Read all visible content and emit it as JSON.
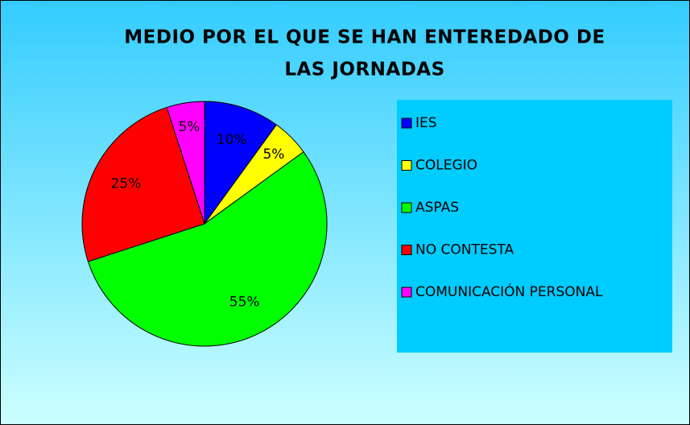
{
  "chart_data": {
    "type": "pie",
    "title": [
      "MEDIO POR EL QUE SE HAN ENTEREDADO DE",
      "LAS JORNADAS"
    ],
    "categories": [
      "IES",
      "COLEGIO",
      "ASPAS",
      "NO CONTESTA",
      "COMUNICACIÓN PERSONAL"
    ],
    "values": [
      10,
      5,
      55,
      25,
      5
    ],
    "value_labels": [
      "10%",
      "5%",
      "55%",
      "25%",
      "5%"
    ],
    "colors": [
      "#0000ff",
      "#ffff00",
      "#00ff00",
      "#ff0000",
      "#ff00ff"
    ],
    "legend": "right"
  }
}
